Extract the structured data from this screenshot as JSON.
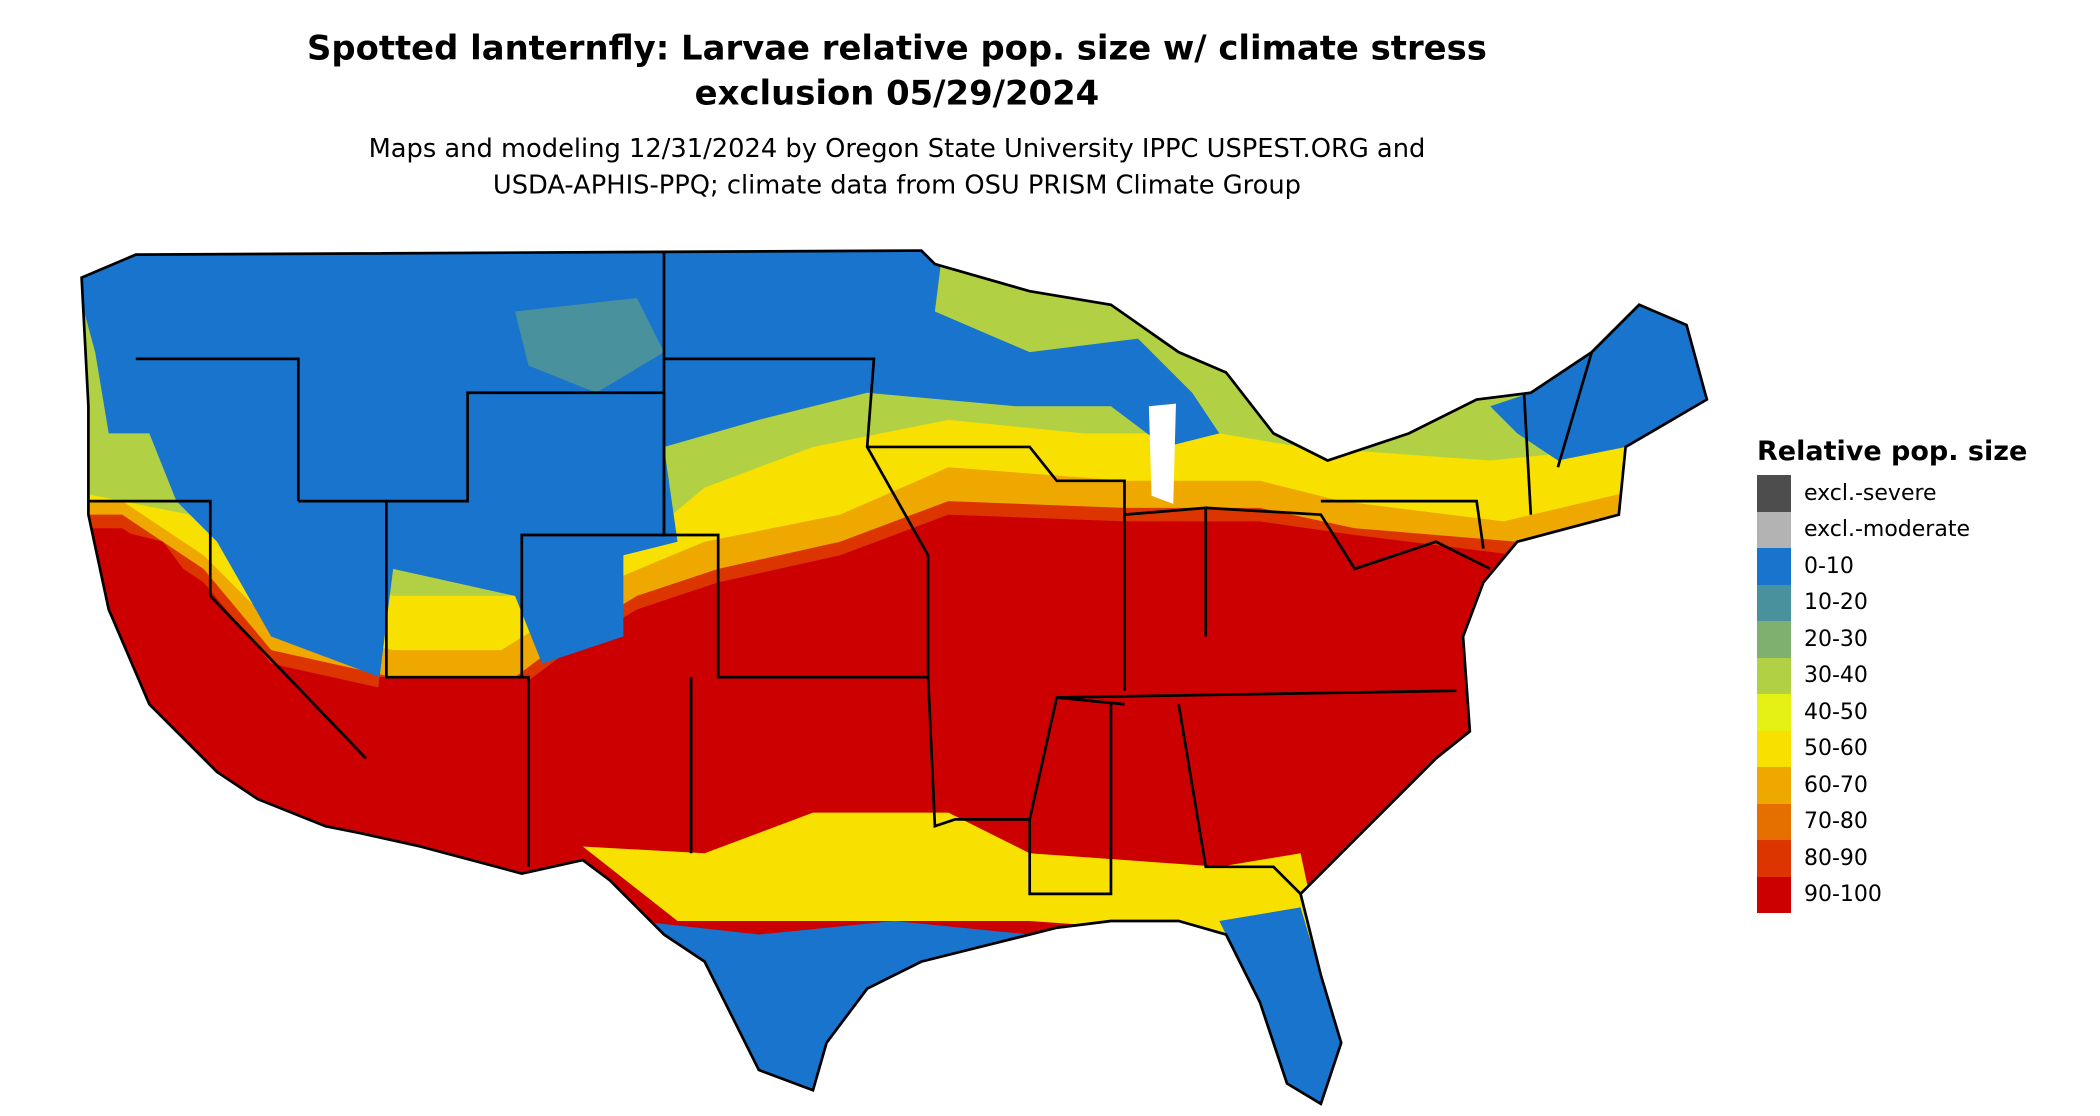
{
  "title_line1": "Spotted lanternfly: Larvae relative pop. size w/ climate stress",
  "title_line2": "exclusion 05/29/2024",
  "subtitle_line1": "Maps and modeling 12/31/2024 by Oregon State University IPPC USPEST.ORG and",
  "subtitle_line2": "USDA-APHIS-PPQ; climate data from OSU PRISM Climate Group",
  "legend": {
    "title": "Relative pop. size",
    "items": [
      {
        "label": "excl.-severe",
        "color": "#4d4d4d"
      },
      {
        "label": "excl.-moderate",
        "color": "#b3b3b3"
      },
      {
        "label": "0-10",
        "color": "#1874cd"
      },
      {
        "label": "10-20",
        "color": "#4a919e"
      },
      {
        "label": "20-30",
        "color": "#7fb070"
      },
      {
        "label": "30-40",
        "color": "#b2d044"
      },
      {
        "label": "40-50",
        "color": "#e5f014"
      },
      {
        "label": "50-60",
        "color": "#f8e000"
      },
      {
        "label": "60-70",
        "color": "#efa800"
      },
      {
        "label": "70-80",
        "color": "#e57000"
      },
      {
        "label": "80-90",
        "color": "#dc3500"
      },
      {
        "label": "90-100",
        "color": "#cc0000"
      }
    ]
  }
}
